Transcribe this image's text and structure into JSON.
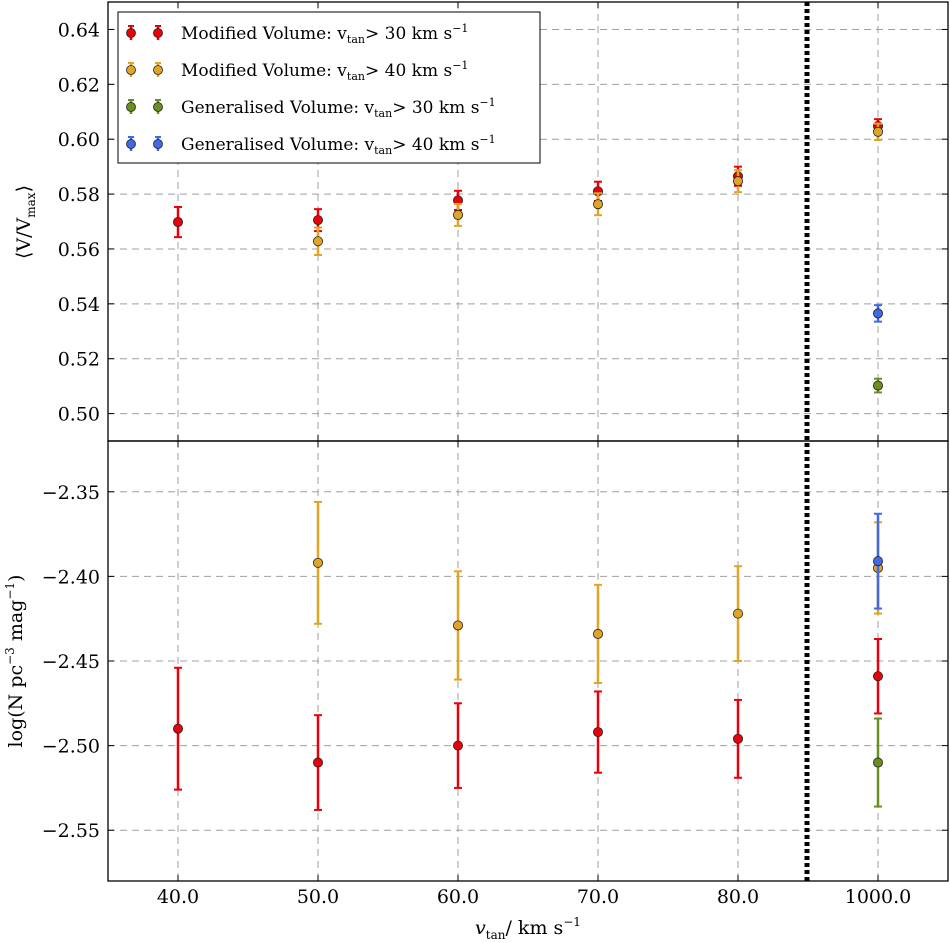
{
  "chart_data": [
    {
      "type": "scatter",
      "panel": "top",
      "ylabel": "⟨V/V",
      "ylabel_sub": "max",
      "ylabel_close": "⟩",
      "ylim": [
        0.49,
        0.65
      ],
      "yticks": [
        0.5,
        0.52,
        0.54,
        0.56,
        0.58,
        0.6,
        0.62,
        0.64
      ],
      "ytick_labels": [
        "0.50",
        "0.52",
        "0.54",
        "0.56",
        "0.58",
        "0.60",
        "0.62",
        "0.64"
      ],
      "categories": [
        "40.0",
        "50.0",
        "60.0",
        "70.0",
        "80.0",
        "1000.0"
      ],
      "grid": true,
      "legend_position": "top-left",
      "series": [
        {
          "name": "Modified Volume: v",
          "name_sub": "tan",
          "name_rest": "> 30 km s",
          "name_sup": "−1",
          "color": "#e8000b",
          "values": [
            0.5698,
            0.5705,
            0.5777,
            0.581,
            0.5865,
            0.6048
          ],
          "errors": [
            0.0055,
            0.004,
            0.0035,
            0.0035,
            0.0035,
            0.0025
          ]
        },
        {
          "name": "Modified Volume: v",
          "name_sub": "tan",
          "name_rest": "> 40 km s",
          "name_sup": "−1",
          "color": "#e0a526",
          "values": [
            null,
            0.5628,
            0.5724,
            0.5763,
            0.5847,
            0.6027
          ],
          "errors": [
            null,
            0.005,
            0.004,
            0.004,
            0.004,
            0.003
          ]
        },
        {
          "name": "Generalised Volume: v",
          "name_sub": "tan",
          "name_rest": "> 30 km s",
          "name_sup": "−1",
          "color": "#6b8e23",
          "values": [
            null,
            null,
            null,
            null,
            null,
            0.5102
          ],
          "errors": [
            null,
            null,
            null,
            null,
            null,
            0.0025
          ]
        },
        {
          "name": "Generalised Volume: v",
          "name_sub": "tan",
          "name_rest": "> 40 km s",
          "name_sup": "−1",
          "color": "#4169e1",
          "values": [
            null,
            null,
            null,
            null,
            null,
            0.5365
          ],
          "errors": [
            null,
            null,
            null,
            null,
            null,
            0.003
          ]
        }
      ]
    },
    {
      "type": "scatter",
      "panel": "bottom",
      "ylabel": "log(N pc",
      "ylabel_sup1": "−3",
      "ylabel_mid": " mag",
      "ylabel_sup2": "−1",
      "ylabel_close": ")",
      "ylim": [
        -2.58,
        -2.32
      ],
      "yticks": [
        -2.55,
        -2.5,
        -2.45,
        -2.4,
        -2.35
      ],
      "ytick_labels": [
        "−2.55",
        "−2.50",
        "−2.45",
        "−2.40",
        "−2.35"
      ],
      "xlabel": "v",
      "xlabel_sub": "tan",
      "xlabel_rest": "/ km s",
      "xlabel_sup": "−1",
      "categories": [
        "40.0",
        "50.0",
        "60.0",
        "70.0",
        "80.0",
        "1000.0"
      ],
      "grid": true,
      "series": [
        {
          "name": "Modified Volume: v > 30 km s−1",
          "color": "#e8000b",
          "values": [
            -2.49,
            -2.51,
            -2.5,
            -2.492,
            -2.496,
            -2.459
          ],
          "errors": [
            0.036,
            0.028,
            0.025,
            0.024,
            0.023,
            0.022
          ]
        },
        {
          "name": "Modified Volume: v > 40 km s−1",
          "color": "#e0a526",
          "values": [
            null,
            -2.392,
            -2.429,
            -2.434,
            -2.422,
            -2.395
          ],
          "errors": [
            null,
            0.036,
            0.032,
            0.029,
            0.028,
            0.027
          ]
        },
        {
          "name": "Generalised Volume: v > 30 km s−1",
          "color": "#6b8e23",
          "values": [
            null,
            null,
            null,
            null,
            null,
            -2.51
          ],
          "errors": [
            null,
            null,
            null,
            null,
            null,
            0.026
          ]
        },
        {
          "name": "Generalised Volume: v > 40 km s−1",
          "color": "#4169e1",
          "values": [
            null,
            null,
            null,
            null,
            null,
            -2.391
          ],
          "errors": [
            null,
            null,
            null,
            null,
            null,
            0.028
          ]
        }
      ]
    }
  ],
  "divider": {
    "between": [
      "80.0",
      "1000.0"
    ],
    "style": "dotted",
    "color": "#000000"
  }
}
